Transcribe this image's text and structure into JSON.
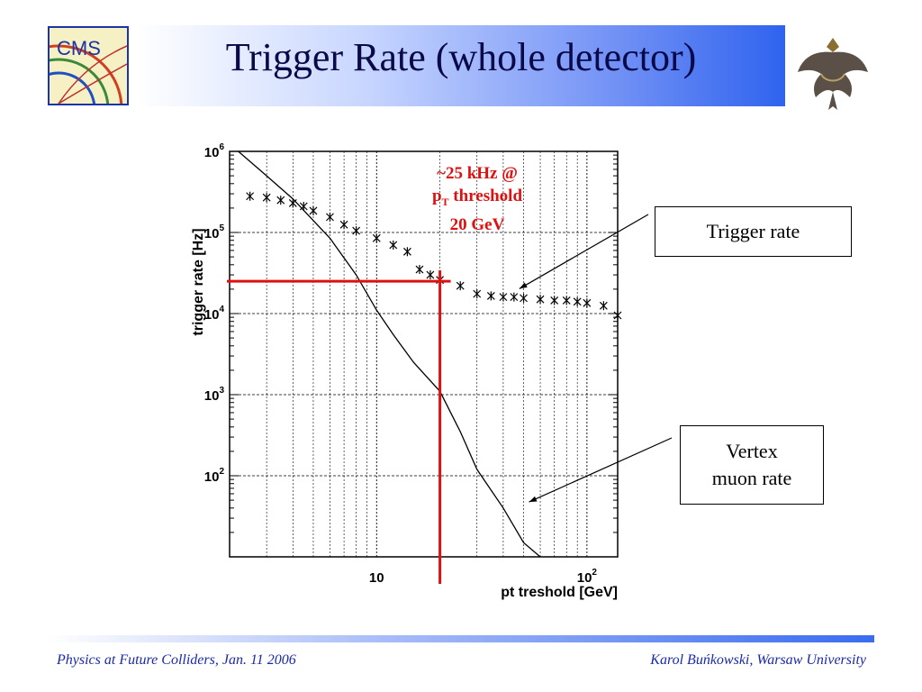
{
  "slide": {
    "title": "Trigger Rate (whole detector)",
    "logo_text": "CMS",
    "footer_left": "Physics at Future Colliders, Jan. 11 2006",
    "footer_right": "Karol Buńkowski, Warsaw University",
    "colors": {
      "title": "#0a0a4a",
      "footer_text": "#1a2aa8",
      "highlight": "#e01010"
    }
  },
  "chart_data": {
    "type": "scatter",
    "x_scale": "log",
    "y_scale": "log",
    "xlim": [
      2,
      140
    ],
    "ylim": [
      10,
      1000000
    ],
    "grid": true,
    "ylabel": "trigger rate [Hz]",
    "xlabel": "pt treshold [GeV]",
    "x_ticks": [
      {
        "value": 10,
        "label": "10",
        "sup": ""
      },
      {
        "value": 100,
        "label": "10",
        "sup": "2"
      }
    ],
    "y_ticks": [
      {
        "value": 100,
        "label": "10",
        "sup": "2"
      },
      {
        "value": 1000,
        "label": "10",
        "sup": "3"
      },
      {
        "value": 10000,
        "label": "10",
        "sup": "4"
      },
      {
        "value": 100000,
        "label": "10",
        "sup": "5"
      },
      {
        "value": 1000000,
        "label": "10",
        "sup": "6"
      }
    ],
    "series": [
      {
        "kind": "markers",
        "x": [
          2.5,
          3,
          3.5,
          4,
          4.5,
          5,
          6,
          7,
          8,
          10,
          12,
          14,
          16,
          18,
          20,
          25,
          30,
          35,
          40,
          45,
          50,
          60,
          70,
          80,
          90,
          100,
          120,
          140
        ],
        "y": [
          280000,
          270000,
          250000,
          230000,
          210000,
          185000,
          155000,
          125000,
          105000,
          85000,
          70000,
          58000,
          35000,
          30000,
          26000,
          22000,
          17500,
          16500,
          16000,
          16000,
          15500,
          15000,
          14500,
          14500,
          14000,
          13500,
          12500,
          9500
        ]
      },
      {
        "kind": "curve",
        "x": [
          2.2,
          3,
          4,
          5,
          6,
          8,
          10,
          12,
          15,
          20,
          25,
          30,
          40,
          50,
          60
        ],
        "y": [
          1000000,
          500000,
          260000,
          140000,
          85000,
          30000,
          11000,
          5500,
          2500,
          1100,
          350,
          120,
          40,
          15,
          8
        ]
      }
    ],
    "threshold": {
      "x": 20,
      "y": 25000
    },
    "annotation": {
      "line1": "~25 kHz @",
      "line2_main": "p",
      "line2_sub": "T",
      "line2_rest": " threshold",
      "line3": "20 GeV"
    },
    "callouts": [
      {
        "text": "Trigger rate",
        "points_to": {
          "x": 45,
          "y": 16500
        }
      },
      {
        "line1": "Vertex",
        "line2": "muon rate",
        "points_to": {
          "x": 50,
          "y": 50
        }
      }
    ]
  }
}
